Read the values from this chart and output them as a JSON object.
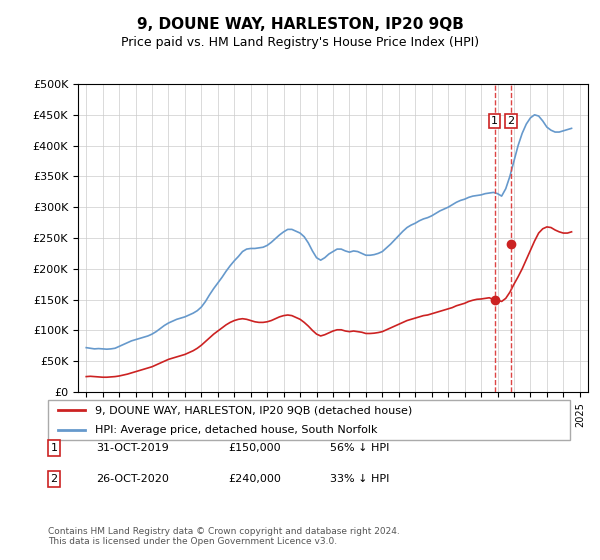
{
  "title": "9, DOUNE WAY, HARLESTON, IP20 9QB",
  "subtitle": "Price paid vs. HM Land Registry's House Price Index (HPI)",
  "ylabel_ticks": [
    "£0",
    "£50K",
    "£100K",
    "£150K",
    "£200K",
    "£250K",
    "£300K",
    "£350K",
    "£400K",
    "£450K",
    "£500K"
  ],
  "ytick_values": [
    0,
    50000,
    100000,
    150000,
    200000,
    250000,
    300000,
    350000,
    400000,
    450000,
    500000
  ],
  "xlim": [
    1994.5,
    2025.5
  ],
  "ylim": [
    0,
    500000
  ],
  "hpi_color": "#6699cc",
  "price_color": "#cc2222",
  "transaction_color": "#cc2222",
  "marker_color": "#cc2222",
  "vline_color": "#dd4444",
  "legend_label_property": "9, DOUNE WAY, HARLESTON, IP20 9QB (detached house)",
  "legend_label_hpi": "HPI: Average price, detached house, South Norfolk",
  "transactions": [
    {
      "date": 2019.83,
      "price": 150000,
      "label": "1",
      "pct": "56% ↓ HPI",
      "date_str": "31-OCT-2019"
    },
    {
      "date": 2020.83,
      "price": 240000,
      "label": "2",
      "pct": "33% ↓ HPI",
      "date_str": "26-OCT-2020"
    }
  ],
  "footer": "Contains HM Land Registry data © Crown copyright and database right 2024.\nThis data is licensed under the Open Government Licence v3.0.",
  "hpi_data_x": [
    1995.0,
    1995.25,
    1995.5,
    1995.75,
    1996.0,
    1996.25,
    1996.5,
    1996.75,
    1997.0,
    1997.25,
    1997.5,
    1997.75,
    1998.0,
    1998.25,
    1998.5,
    1998.75,
    1999.0,
    1999.25,
    1999.5,
    1999.75,
    2000.0,
    2000.25,
    2000.5,
    2000.75,
    2001.0,
    2001.25,
    2001.5,
    2001.75,
    2002.0,
    2002.25,
    2002.5,
    2002.75,
    2003.0,
    2003.25,
    2003.5,
    2003.75,
    2004.0,
    2004.25,
    2004.5,
    2004.75,
    2005.0,
    2005.25,
    2005.5,
    2005.75,
    2006.0,
    2006.25,
    2006.5,
    2006.75,
    2007.0,
    2007.25,
    2007.5,
    2007.75,
    2008.0,
    2008.25,
    2008.5,
    2008.75,
    2009.0,
    2009.25,
    2009.5,
    2009.75,
    2010.0,
    2010.25,
    2010.5,
    2010.75,
    2011.0,
    2011.25,
    2011.5,
    2011.75,
    2012.0,
    2012.25,
    2012.5,
    2012.75,
    2013.0,
    2013.25,
    2013.5,
    2013.75,
    2014.0,
    2014.25,
    2014.5,
    2014.75,
    2015.0,
    2015.25,
    2015.5,
    2015.75,
    2016.0,
    2016.25,
    2016.5,
    2016.75,
    2017.0,
    2017.25,
    2017.5,
    2017.75,
    2018.0,
    2018.25,
    2018.5,
    2018.75,
    2019.0,
    2019.25,
    2019.5,
    2019.75,
    2020.0,
    2020.25,
    2020.5,
    2020.75,
    2021.0,
    2021.25,
    2021.5,
    2021.75,
    2022.0,
    2022.25,
    2022.5,
    2022.75,
    2023.0,
    2023.25,
    2023.5,
    2023.75,
    2024.0,
    2024.25,
    2024.5
  ],
  "hpi_data_y": [
    72000,
    71000,
    70000,
    70500,
    70000,
    69500,
    70000,
    71000,
    74000,
    77000,
    80000,
    83000,
    85000,
    87000,
    89000,
    91000,
    94000,
    98000,
    103000,
    108000,
    112000,
    115000,
    118000,
    120000,
    122000,
    125000,
    128000,
    132000,
    138000,
    147000,
    158000,
    168000,
    177000,
    186000,
    196000,
    205000,
    213000,
    220000,
    228000,
    232000,
    233000,
    233000,
    234000,
    235000,
    238000,
    243000,
    249000,
    255000,
    260000,
    264000,
    264000,
    261000,
    258000,
    252000,
    242000,
    229000,
    218000,
    214000,
    218000,
    224000,
    228000,
    232000,
    232000,
    229000,
    227000,
    229000,
    228000,
    225000,
    222000,
    222000,
    223000,
    225000,
    228000,
    234000,
    240000,
    247000,
    254000,
    261000,
    267000,
    271000,
    274000,
    278000,
    281000,
    283000,
    286000,
    290000,
    294000,
    297000,
    300000,
    304000,
    308000,
    311000,
    313000,
    316000,
    318000,
    319000,
    320000,
    322000,
    323000,
    324000,
    322000,
    318000,
    330000,
    350000,
    375000,
    400000,
    420000,
    435000,
    445000,
    450000,
    448000,
    440000,
    430000,
    425000,
    422000,
    422000,
    424000,
    426000,
    428000
  ],
  "price_data_x": [
    1995.0,
    1995.25,
    1995.5,
    1995.75,
    1996.0,
    1996.25,
    1996.5,
    1996.75,
    1997.0,
    1997.25,
    1997.5,
    1997.75,
    1998.0,
    1998.25,
    1998.5,
    1998.75,
    1999.0,
    1999.25,
    1999.5,
    1999.75,
    2000.0,
    2000.25,
    2000.5,
    2000.75,
    2001.0,
    2001.25,
    2001.5,
    2001.75,
    2002.0,
    2002.25,
    2002.5,
    2002.75,
    2003.0,
    2003.25,
    2003.5,
    2003.75,
    2004.0,
    2004.25,
    2004.5,
    2004.75,
    2005.0,
    2005.25,
    2005.5,
    2005.75,
    2006.0,
    2006.25,
    2006.5,
    2006.75,
    2007.0,
    2007.25,
    2007.5,
    2007.75,
    2008.0,
    2008.25,
    2008.5,
    2008.75,
    2009.0,
    2009.25,
    2009.5,
    2009.75,
    2010.0,
    2010.25,
    2010.5,
    2010.75,
    2011.0,
    2011.25,
    2011.5,
    2011.75,
    2012.0,
    2012.25,
    2012.5,
    2012.75,
    2013.0,
    2013.25,
    2013.5,
    2013.75,
    2014.0,
    2014.25,
    2014.5,
    2014.75,
    2015.0,
    2015.25,
    2015.5,
    2015.75,
    2016.0,
    2016.25,
    2016.5,
    2016.75,
    2017.0,
    2017.25,
    2017.5,
    2017.75,
    2018.0,
    2018.25,
    2018.5,
    2018.75,
    2019.0,
    2019.25,
    2019.5,
    2019.75,
    2020.0,
    2020.25,
    2020.5,
    2020.75,
    2021.0,
    2021.25,
    2021.5,
    2021.75,
    2022.0,
    2022.25,
    2022.5,
    2022.75,
    2023.0,
    2023.25,
    2023.5,
    2023.75,
    2024.0,
    2024.25,
    2024.5
  ],
  "price_data_y": [
    25000,
    25500,
    25000,
    24500,
    24000,
    24000,
    24500,
    25000,
    26000,
    27500,
    29000,
    31000,
    33000,
    35000,
    37000,
    39000,
    41000,
    44000,
    47000,
    50000,
    53000,
    55000,
    57000,
    59000,
    61000,
    64000,
    67000,
    71000,
    76000,
    82000,
    88000,
    94000,
    99000,
    104000,
    109000,
    113000,
    116000,
    118000,
    119000,
    118000,
    116000,
    114000,
    113000,
    113000,
    114000,
    116000,
    119000,
    122000,
    124000,
    125000,
    124000,
    121000,
    118000,
    113000,
    107000,
    100000,
    94000,
    91000,
    93000,
    96000,
    99000,
    101000,
    101000,
    99000,
    98000,
    99000,
    98000,
    97000,
    95000,
    95000,
    95500,
    96500,
    98000,
    101000,
    104000,
    107000,
    110000,
    113000,
    116000,
    118000,
    120000,
    122000,
    124000,
    125000,
    127000,
    129000,
    131000,
    133000,
    135000,
    137000,
    140000,
    142000,
    144000,
    147000,
    149000,
    150500,
    151000,
    152000,
    153000,
    150000,
    149000,
    147000,
    152000,
    162000,
    175000,
    187000,
    200000,
    215000,
    230000,
    245000,
    258000,
    265000,
    268000,
    267000,
    263000,
    260000,
    258000,
    258000,
    260000
  ]
}
